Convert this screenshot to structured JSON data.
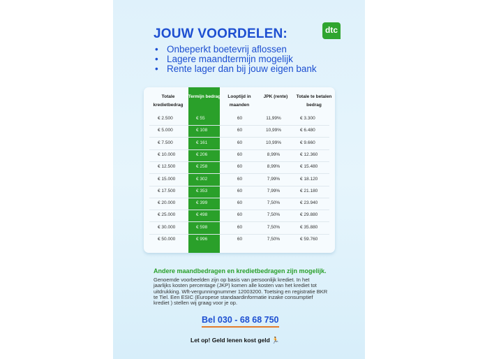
{
  "header": {
    "title": "JOUW VOORDELEN:",
    "logo": "dtc",
    "bullets": [
      "Onbeperkt boetevrij aflossen",
      "Lagere maandtermijn mogelijk",
      "Rente lager dan bij jouw eigen bank"
    ]
  },
  "table": {
    "headers": [
      "Totale kredietbedrag",
      "Termijn bedrag",
      "Looptijd in maanden",
      "JPK (rente)",
      "Totale te betalen bedrag"
    ],
    "rows": [
      [
        "€ 2.500",
        "€ 55",
        "60",
        "11,99%",
        "€ 3.300"
      ],
      [
        "€ 5.000",
        "€ 108",
        "60",
        "10,99%",
        "€ 6.480"
      ],
      [
        "€ 7.500",
        "€ 161",
        "60",
        "10,99%",
        "€ 9.660"
      ],
      [
        "€ 10.000",
        "€ 206",
        "60",
        "8,99%",
        "€ 12.360"
      ],
      [
        "€ 12.500",
        "€ 258",
        "60",
        "8,99%",
        "€ 15.480"
      ],
      [
        "€ 15.000",
        "€ 302",
        "60",
        "7,99%",
        "€ 18.120"
      ],
      [
        "€ 17.500",
        "€ 353",
        "60",
        "7,99%",
        "€ 21.180"
      ],
      [
        "€ 20.000",
        "€ 399",
        "60",
        "7,50%",
        "€ 23.940"
      ],
      [
        "€ 25.000",
        "€ 498",
        "60",
        "7,50%",
        "€ 29.880"
      ],
      [
        "€ 30.000",
        "€ 598",
        "60",
        "7,50%",
        "€ 35.880"
      ],
      [
        "€ 50.000",
        "€ 996",
        "60",
        "7,50%",
        "€ 59.760"
      ]
    ],
    "highlight_color": "#2aa02a"
  },
  "footer": {
    "subtitle": "Andere maandbedragen en kredietbedragen zijn mogelijk.",
    "description": "Genoemde voorbeelden zijn op basis van persoonlijk krediet. In het jaarlijks kosten percentage (JKP) komen alle kosten van het krediet tot uitdrukking. Wft-vergunningnummer 12003200. Toetsing en registratie BKR te Tiel. Een ESIC (Europese standaardinformatie inzake consumptief krediet ) stellen wij graag voor je op.",
    "phone": "Bel 030 - 68 68 750",
    "warning": "Let op! Geld lenen kost geld"
  },
  "colors": {
    "brand_blue": "#1d4fd1",
    "brand_green": "#2aa02a",
    "underline_orange": "#e27b2a"
  }
}
